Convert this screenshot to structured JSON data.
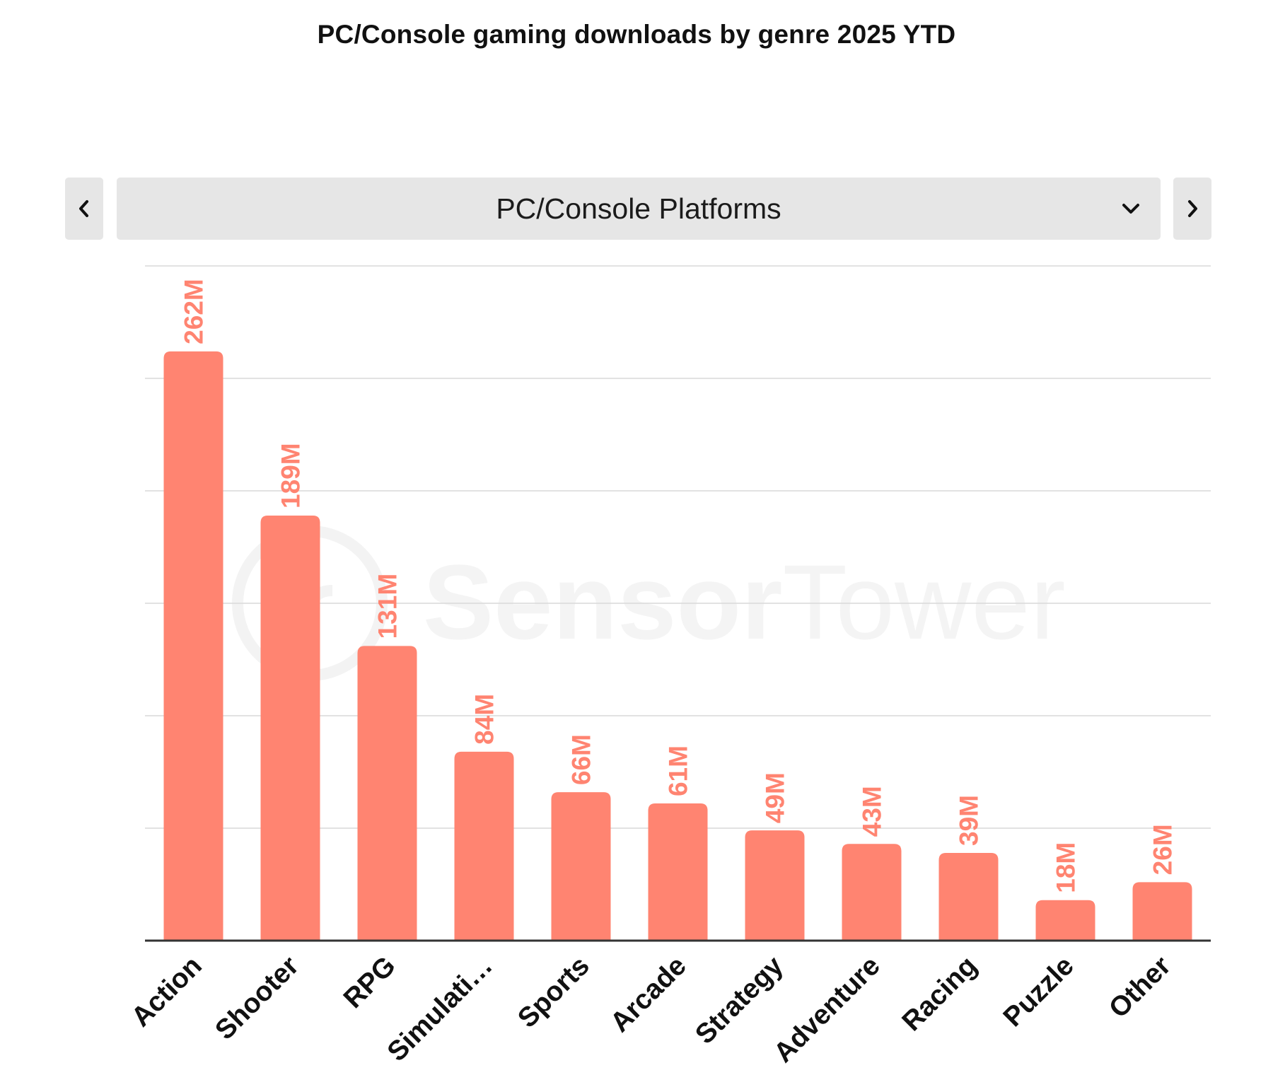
{
  "header": {
    "title": "PC/Console gaming downloads by genre 2025 YTD"
  },
  "selector": {
    "selected": "PC/Console Platforms",
    "prev_icon": "chevron-left-icon",
    "next_icon": "chevron-right-icon",
    "dropdown_icon": "chevron-down-icon"
  },
  "watermark": {
    "brand_bold": "Sensor",
    "brand_light": "Tower"
  },
  "colors": {
    "bar": "#ff8471",
    "value_label": "#ff8471",
    "gridline": "#d9d9d9",
    "axis": "#333333",
    "control_bg": "#e6e6e6"
  },
  "chart_data": {
    "type": "bar",
    "title": "PC/Console gaming downloads by genre 2025 YTD",
    "xlabel": "",
    "ylabel": "",
    "categories": [
      "Action",
      "Shooter",
      "RPG",
      "Simulati…",
      "Sports",
      "Arcade",
      "Strategy",
      "Adventure",
      "Racing",
      "Puzzle",
      "Other"
    ],
    "values": [
      262,
      189,
      131,
      84,
      66,
      61,
      49,
      43,
      39,
      18,
      26
    ],
    "value_labels": [
      "262M",
      "189M",
      "131M",
      "84M",
      "66M",
      "61M",
      "49M",
      "43M",
      "39M",
      "18M",
      "26M"
    ],
    "unit": "M",
    "ylim": [
      0,
      300
    ],
    "grid": true,
    "legend": "none"
  }
}
